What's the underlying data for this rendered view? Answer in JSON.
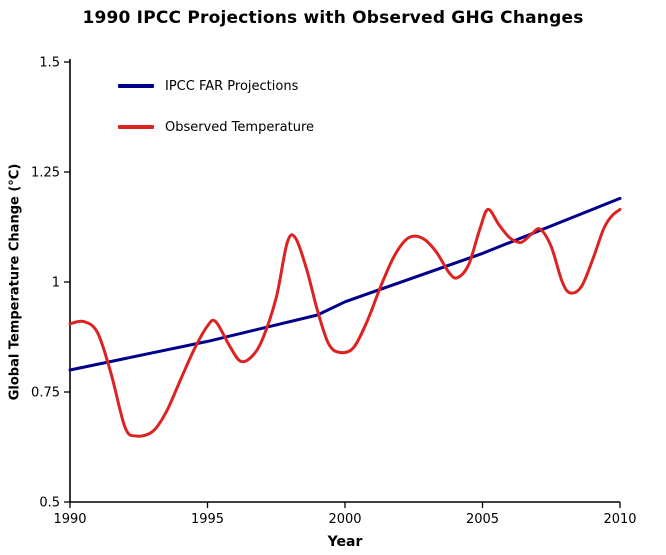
{
  "chart_data": {
    "type": "line",
    "title": "1990 IPCC Projections with Observed GHG Changes",
    "xlabel": "Year",
    "ylabel": "Global Temperature Change (°C)",
    "xlim": [
      1990,
      2010
    ],
    "ylim": [
      0.5,
      1.5
    ],
    "grid": false,
    "legend_position": "upper-left",
    "x_ticks": [
      1990,
      1995,
      2000,
      2005,
      2010
    ],
    "x_tick_labels": [
      "1990",
      "1995",
      "2000",
      "2005",
      "2010"
    ],
    "y_ticks": [
      0.5,
      0.75,
      1,
      1.25,
      1.5
    ],
    "y_tick_labels": [
      "0.5",
      "0.75",
      "1",
      "1.25",
      "1.5"
    ],
    "axis_color": "#000000",
    "series": [
      {
        "name": "IPCC FAR Projections",
        "color": "#00008B",
        "smooth": false,
        "points": [
          [
            1990,
            0.8
          ],
          [
            1995,
            0.865
          ],
          [
            1999,
            0.925
          ],
          [
            2000,
            0.955
          ],
          [
            2005,
            1.065
          ],
          [
            2010,
            1.19
          ]
        ]
      },
      {
        "name": "Observed Temperature",
        "color": "#DD2222",
        "smooth": true,
        "points": [
          [
            1990,
            0.905
          ],
          [
            1990.5,
            0.91
          ],
          [
            1991,
            0.885
          ],
          [
            1991.5,
            0.79
          ],
          [
            1992,
            0.67
          ],
          [
            1992.4,
            0.65
          ],
          [
            1993,
            0.66
          ],
          [
            1993.5,
            0.705
          ],
          [
            1994,
            0.775
          ],
          [
            1994.5,
            0.845
          ],
          [
            1995,
            0.9
          ],
          [
            1995.3,
            0.91
          ],
          [
            1995.8,
            0.855
          ],
          [
            1996.2,
            0.82
          ],
          [
            1996.6,
            0.83
          ],
          [
            1997,
            0.87
          ],
          [
            1997.5,
            0.965
          ],
          [
            1997.9,
            1.09
          ],
          [
            1998.2,
            1.1
          ],
          [
            1998.6,
            1.03
          ],
          [
            1999,
            0.935
          ],
          [
            1999.4,
            0.86
          ],
          [
            1999.8,
            0.84
          ],
          [
            2000.3,
            0.85
          ],
          [
            2000.8,
            0.91
          ],
          [
            2001.3,
            0.99
          ],
          [
            2001.8,
            1.06
          ],
          [
            2002.3,
            1.1
          ],
          [
            2002.8,
            1.1
          ],
          [
            2003.3,
            1.07
          ],
          [
            2003.8,
            1.02
          ],
          [
            2004.1,
            1.01
          ],
          [
            2004.5,
            1.04
          ],
          [
            2004.9,
            1.12
          ],
          [
            2005.2,
            1.165
          ],
          [
            2005.6,
            1.13
          ],
          [
            2006,
            1.1
          ],
          [
            2006.4,
            1.09
          ],
          [
            2006.8,
            1.11
          ],
          [
            2007.1,
            1.12
          ],
          [
            2007.5,
            1.08
          ],
          [
            2007.9,
            1.0
          ],
          [
            2008.2,
            0.975
          ],
          [
            2008.6,
            0.99
          ],
          [
            2009,
            1.05
          ],
          [
            2009.4,
            1.12
          ],
          [
            2009.7,
            1.15
          ],
          [
            2010,
            1.165
          ]
        ]
      }
    ]
  }
}
